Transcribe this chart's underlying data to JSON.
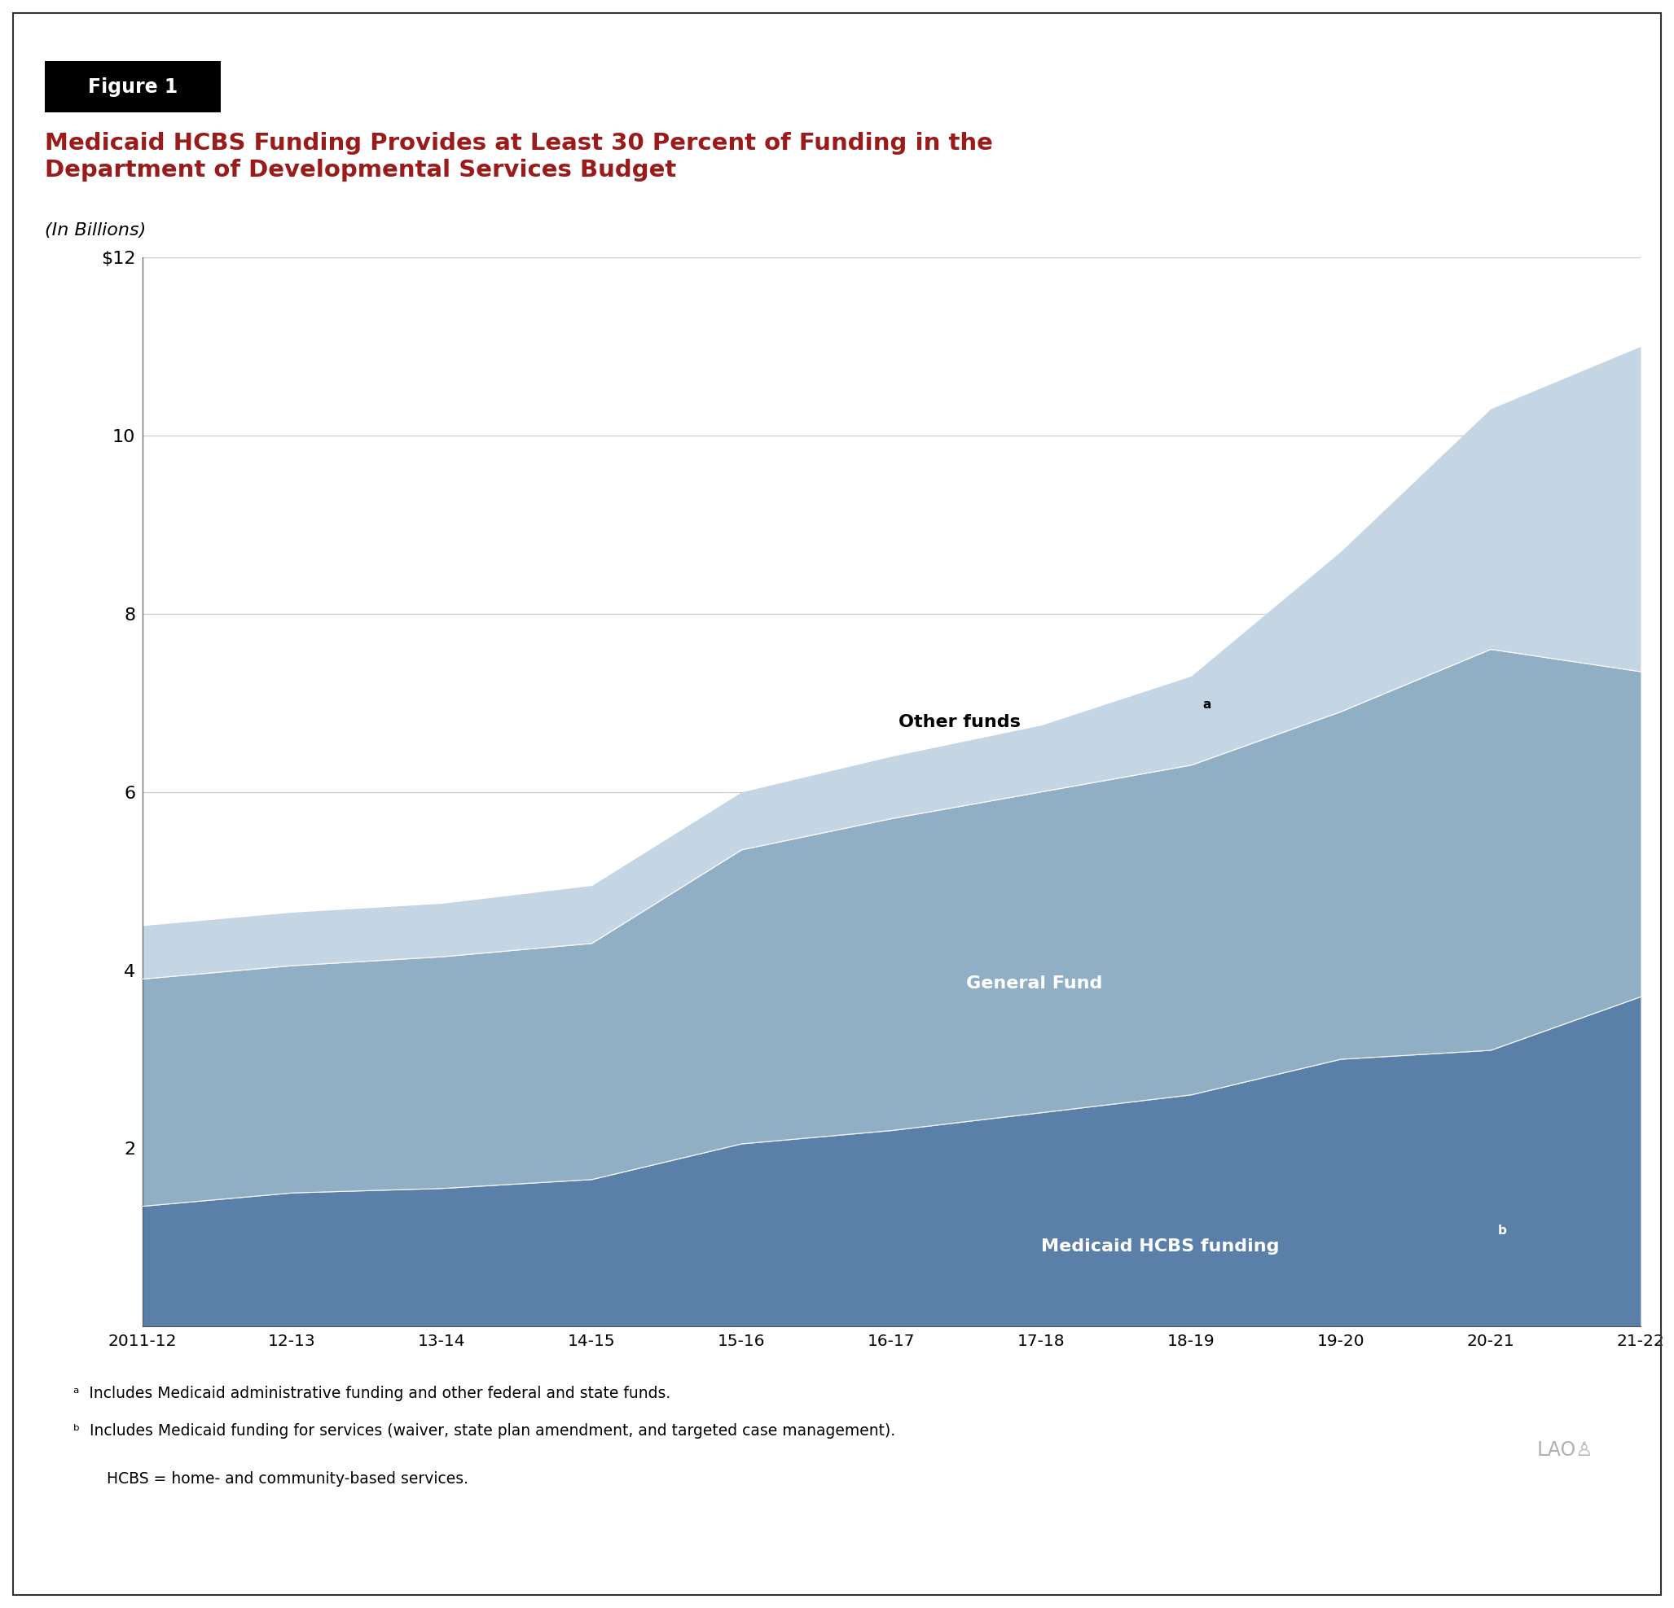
{
  "title_line1": "Medicaid HCBS Funding Provides at Least 30 Percent of Funding in the",
  "title_line2": "Department of Developmental Services Budget",
  "subtitle": "(In Billions)",
  "figure_label": "Figure 1",
  "title_color": "#9B1B1B",
  "background_color": "#FFFFFF",
  "x_labels": [
    "2011-12",
    "12-13",
    "13-14",
    "14-15",
    "15-16",
    "16-17",
    "17-18",
    "18-19",
    "19-20",
    "20-21",
    "21-22"
  ],
  "medicaid_hcbs": [
    1.35,
    1.5,
    1.55,
    1.65,
    2.05,
    2.2,
    2.4,
    2.6,
    3.0,
    3.1,
    3.7
  ],
  "general_fund": [
    2.55,
    2.55,
    2.6,
    2.65,
    3.3,
    3.5,
    3.6,
    3.7,
    3.9,
    4.5,
    3.65
  ],
  "other_funds": [
    0.6,
    0.6,
    0.6,
    0.65,
    0.65,
    0.7,
    0.75,
    1.0,
    1.8,
    2.7,
    3.65
  ],
  "color_medicaid": "#5a7fa8",
  "color_general": "#90afc5",
  "color_other": "#c4d5e4",
  "ylim": [
    0,
    12
  ],
  "yticks": [
    0,
    2,
    4,
    6,
    8,
    10,
    12
  ],
  "ytick_labels": [
    "",
    "2",
    "4",
    "6",
    "8",
    "10",
    "$12"
  ],
  "footnote_a": "ᵃ  Includes Medicaid administrative funding and other federal and state funds.",
  "footnote_b": "ᵇ  Includes Medicaid funding for services (waiver, state plan amendment, and targeted case management).",
  "footnote_hcbs": "   HCBS = home- and community-based services.",
  "lao_text": "LAO♙"
}
